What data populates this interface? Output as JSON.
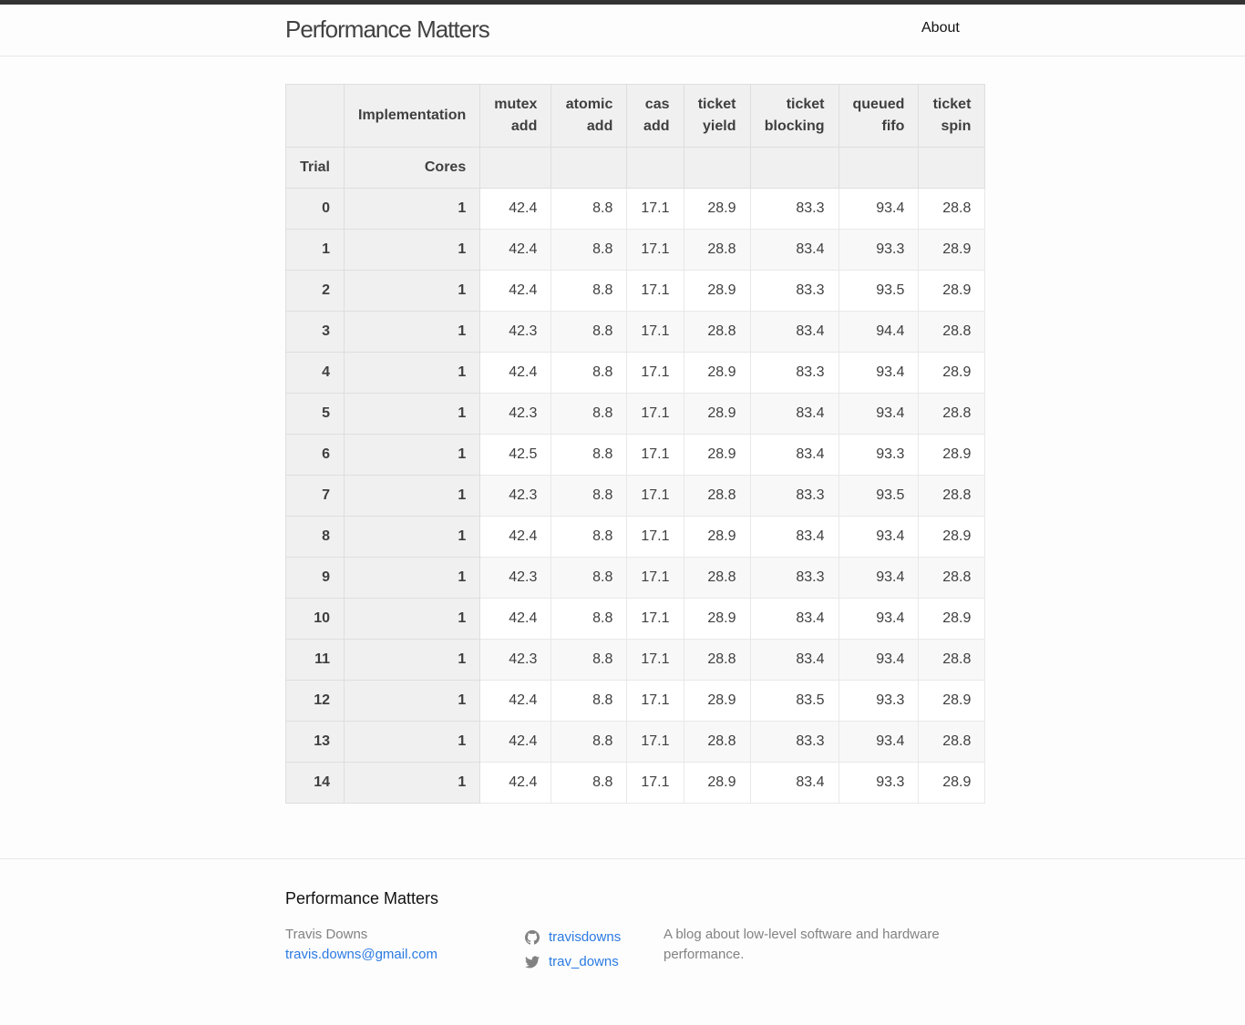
{
  "header": {
    "site_title": "Performance Matters",
    "nav": {
      "about": "About"
    }
  },
  "table": {
    "index_label": "Implementation",
    "columns": [
      "mutex add",
      "atomic add",
      "cas add",
      "ticket yield",
      "ticket blocking",
      "queued fifo",
      "ticket spin"
    ],
    "row_index_names": [
      "Trial",
      "Cores"
    ],
    "rows": [
      {
        "trial": "0",
        "cores": "1",
        "values": [
          "42.4",
          "8.8",
          "17.1",
          "28.9",
          "83.3",
          "93.4",
          "28.8"
        ]
      },
      {
        "trial": "1",
        "cores": "1",
        "values": [
          "42.4",
          "8.8",
          "17.1",
          "28.8",
          "83.4",
          "93.3",
          "28.9"
        ]
      },
      {
        "trial": "2",
        "cores": "1",
        "values": [
          "42.4",
          "8.8",
          "17.1",
          "28.9",
          "83.3",
          "93.5",
          "28.9"
        ]
      },
      {
        "trial": "3",
        "cores": "1",
        "values": [
          "42.3",
          "8.8",
          "17.1",
          "28.8",
          "83.4",
          "94.4",
          "28.8"
        ]
      },
      {
        "trial": "4",
        "cores": "1",
        "values": [
          "42.4",
          "8.8",
          "17.1",
          "28.9",
          "83.3",
          "93.4",
          "28.9"
        ]
      },
      {
        "trial": "5",
        "cores": "1",
        "values": [
          "42.3",
          "8.8",
          "17.1",
          "28.9",
          "83.4",
          "93.4",
          "28.8"
        ]
      },
      {
        "trial": "6",
        "cores": "1",
        "values": [
          "42.5",
          "8.8",
          "17.1",
          "28.9",
          "83.4",
          "93.3",
          "28.9"
        ]
      },
      {
        "trial": "7",
        "cores": "1",
        "values": [
          "42.3",
          "8.8",
          "17.1",
          "28.8",
          "83.3",
          "93.5",
          "28.8"
        ]
      },
      {
        "trial": "8",
        "cores": "1",
        "values": [
          "42.4",
          "8.8",
          "17.1",
          "28.9",
          "83.4",
          "93.4",
          "28.9"
        ]
      },
      {
        "trial": "9",
        "cores": "1",
        "values": [
          "42.3",
          "8.8",
          "17.1",
          "28.8",
          "83.3",
          "93.4",
          "28.8"
        ]
      },
      {
        "trial": "10",
        "cores": "1",
        "values": [
          "42.4",
          "8.8",
          "17.1",
          "28.9",
          "83.4",
          "93.4",
          "28.9"
        ]
      },
      {
        "trial": "11",
        "cores": "1",
        "values": [
          "42.3",
          "8.8",
          "17.1",
          "28.8",
          "83.4",
          "93.4",
          "28.8"
        ]
      },
      {
        "trial": "12",
        "cores": "1",
        "values": [
          "42.4",
          "8.8",
          "17.1",
          "28.9",
          "83.5",
          "93.3",
          "28.9"
        ]
      },
      {
        "trial": "13",
        "cores": "1",
        "values": [
          "42.4",
          "8.8",
          "17.1",
          "28.8",
          "83.3",
          "93.4",
          "28.8"
        ]
      },
      {
        "trial": "14",
        "cores": "1",
        "values": [
          "42.4",
          "8.8",
          "17.1",
          "28.9",
          "83.4",
          "93.3",
          "28.9"
        ]
      }
    ]
  },
  "footer": {
    "heading": "Performance Matters",
    "author_name": "Travis Downs",
    "author_email": "travis.downs@gmail.com",
    "social": [
      {
        "icon": "github-icon",
        "label": "travisdowns"
      },
      {
        "icon": "twitter-icon",
        "label": "trav_downs"
      }
    ],
    "description": "A blog about low-level software and hardware performance."
  },
  "colors": {
    "link": "#2a7ae2",
    "muted": "#828282",
    "header_border": "#333333",
    "table_header_bg": "#f0f0f0"
  }
}
